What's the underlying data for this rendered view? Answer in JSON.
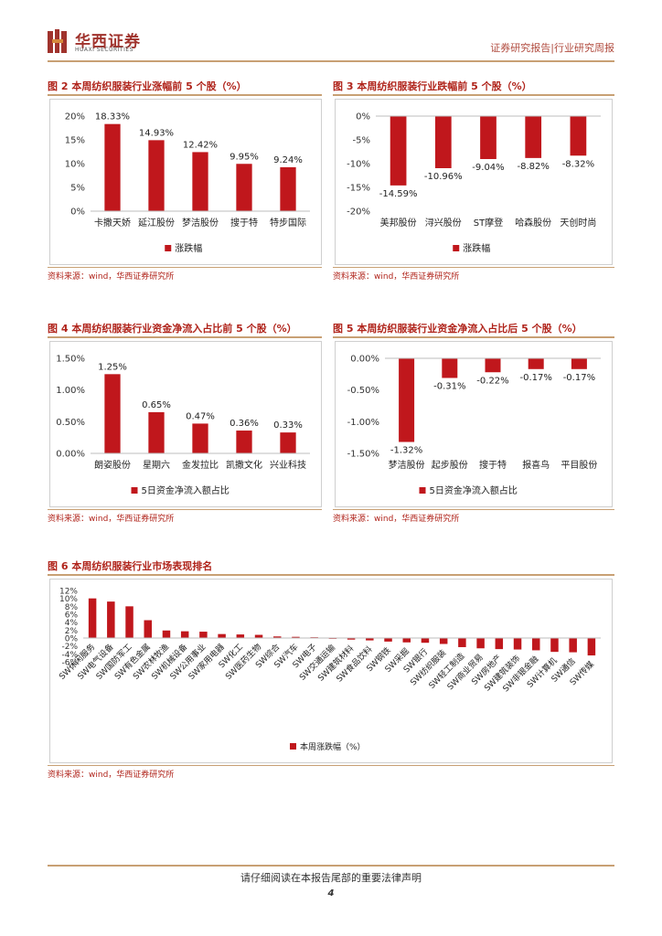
{
  "header": {
    "logo_cn": "华西证券",
    "logo_en": "HUAXI SECURITIES",
    "report_type": "证券研究报告|行业研究周报"
  },
  "colors": {
    "accent": "#b0241b",
    "bar": "#c0171c",
    "rule": "#c8a074"
  },
  "source_text": "资料来源：wind，华西证券研究所",
  "chart_data": [
    {
      "id": "fig2",
      "type": "bar",
      "title": "图 2 本周纺织服装行业涨幅前 5 个股（%）",
      "categories": [
        "卡撒天娇",
        "延江股份",
        "梦洁股份",
        "搜于特",
        "特步国际"
      ],
      "values": [
        18.33,
        14.93,
        12.42,
        9.95,
        9.24
      ],
      "value_labels": [
        "18.33%",
        "14.93%",
        "12.42%",
        "9.95%",
        "9.24%"
      ],
      "ylim": [
        0,
        20
      ],
      "yticks": [
        20,
        15,
        10,
        5,
        0
      ],
      "ytick_labels": [
        "20%",
        "15%",
        "10%",
        "5%",
        "0%"
      ],
      "legend": "涨跌幅"
    },
    {
      "id": "fig3",
      "type": "bar",
      "title": "图 3 本周纺织服装行业跌幅前 5 个股（%）",
      "categories": [
        "美邦股份",
        "浔兴股份",
        "ST摩登",
        "哈森股份",
        "天创时尚"
      ],
      "values": [
        -14.59,
        -10.96,
        -9.04,
        -8.82,
        -8.32
      ],
      "value_labels": [
        "-14.59%",
        "-10.96%",
        "-9.04%",
        "-8.82%",
        "-8.32%"
      ],
      "ylim": [
        -20,
        0
      ],
      "yticks": [
        0,
        -5,
        -10,
        -15,
        -20
      ],
      "ytick_labels": [
        "0%",
        "-5%",
        "-10%",
        "-15%",
        "-20%"
      ],
      "legend": "涨跌幅"
    },
    {
      "id": "fig4",
      "type": "bar",
      "title": "图 4 本周纺织服装行业资金净流入占比前 5 个股（%）",
      "categories": [
        "朗姿股份",
        "星期六",
        "金发拉比",
        "凯撒文化",
        "兴业科技"
      ],
      "values": [
        1.25,
        0.65,
        0.47,
        0.36,
        0.33
      ],
      "value_labels": [
        "1.25%",
        "0.65%",
        "0.47%",
        "0.36%",
        "0.33%"
      ],
      "ylim": [
        0,
        1.5
      ],
      "yticks": [
        1.5,
        1.0,
        0.5,
        0
      ],
      "ytick_labels": [
        "1.50%",
        "1.00%",
        "0.50%",
        "0.00%"
      ],
      "legend": "5日资金净流入额占比"
    },
    {
      "id": "fig5",
      "type": "bar",
      "title": "图 5 本周纺织服装行业资金净流入占比后 5 个股（%）",
      "categories": [
        "梦洁股份",
        "起步股份",
        "搜于特",
        "报喜鸟",
        "平目股份"
      ],
      "values": [
        -1.32,
        -0.31,
        -0.22,
        -0.17,
        -0.17
      ],
      "value_labels": [
        "-1.32%",
        "-0.31%",
        "-0.22%",
        "-0.17%",
        "-0.17%"
      ],
      "ylim": [
        -1.5,
        0
      ],
      "yticks": [
        0,
        -0.5,
        -1.0,
        -1.5
      ],
      "ytick_labels": [
        "0.00%",
        "-0.50%",
        "-1.00%",
        "-1.50%"
      ],
      "legend": "5日资金净流入额占比"
    },
    {
      "id": "fig6",
      "type": "bar",
      "title": "图 6 本周纺织服装行业市场表现排名",
      "categories": [
        "SW休闲服务",
        "SW电气设备",
        "SW国防军工",
        "SW有色金属",
        "SW农林牧渔",
        "SW机械设备",
        "SW公用事业",
        "SW家用电器",
        "SW化工",
        "SW医药生物",
        "SW综合",
        "SW汽车",
        "SW电子",
        "SW交通运输",
        "SW建筑材料",
        "SW食品饮料",
        "SW钢铁",
        "SW采掘",
        "SW银行",
        "SW纺织服装",
        "SW轻工制造",
        "SW商业贸易",
        "SW房地产",
        "SW建筑装饰",
        "SW非银金融",
        "SW计算机",
        "SW通信",
        "SW传媒"
      ],
      "values": [
        10.0,
        9.2,
        8.0,
        4.5,
        1.9,
        1.7,
        1.6,
        1.0,
        0.9,
        0.8,
        0.4,
        0.3,
        0.2,
        -0.2,
        -0.4,
        -0.6,
        -0.9,
        -1.1,
        -1.2,
        -1.5,
        -2.3,
        -2.6,
        -2.8,
        -2.9,
        -3.1,
        -3.5,
        -3.6,
        -4.4
      ],
      "ylim": [
        -6,
        12
      ],
      "yticks": [
        12,
        10,
        8,
        6,
        4,
        2,
        0,
        -2,
        -4,
        -6
      ],
      "ytick_labels": [
        "12%",
        "10%",
        "8%",
        "6%",
        "4%",
        "2%",
        "0%",
        "-2%",
        "-4%",
        "-6%"
      ],
      "legend": "本周涨跌幅（%）"
    }
  ],
  "footer": {
    "disclaimer": "请仔细阅读在本报告尾部的重要法律声明",
    "page_number": "4"
  }
}
